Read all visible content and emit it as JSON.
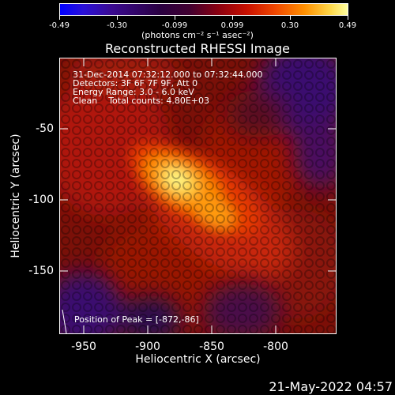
{
  "colorbar": {
    "ticks": [
      "-0.49",
      "-0.30",
      "-0.099",
      "0.099",
      "0.30",
      "0.49"
    ],
    "units": "(photons cm⁻² s⁻¹ asec⁻²)"
  },
  "title": "Reconstructed RHESSI Image",
  "annotations": {
    "line1": "31-Dec-2014 07:32:12.000 to 07:32:44.000",
    "line2": "Detectors: 3F 6F 7F 9F, Att 0",
    "line3": "Energy Range: 3.0 - 6.0 keV",
    "line4": "Clean    Total counts: 4.80E+03",
    "peak": "Position of Peak = [-872,-86]"
  },
  "chart_data": {
    "type": "heatmap",
    "title": "Reconstructed RHESSI Image",
    "xlabel": "Heliocentric X (arcsec)",
    "ylabel": "Heliocentric Y (arcsec)",
    "xticks": [
      "-950",
      "-900",
      "-850",
      "-800"
    ],
    "yticks": [
      "-50",
      "-100",
      "-150"
    ],
    "xlim": [
      -962,
      -835
    ],
    "ylim": [
      -190,
      -25
    ],
    "peak": [
      -872,
      -86
    ],
    "value_range": [
      -0.49,
      0.49
    ]
  },
  "date_stamp": "21-May-2022 04:57"
}
